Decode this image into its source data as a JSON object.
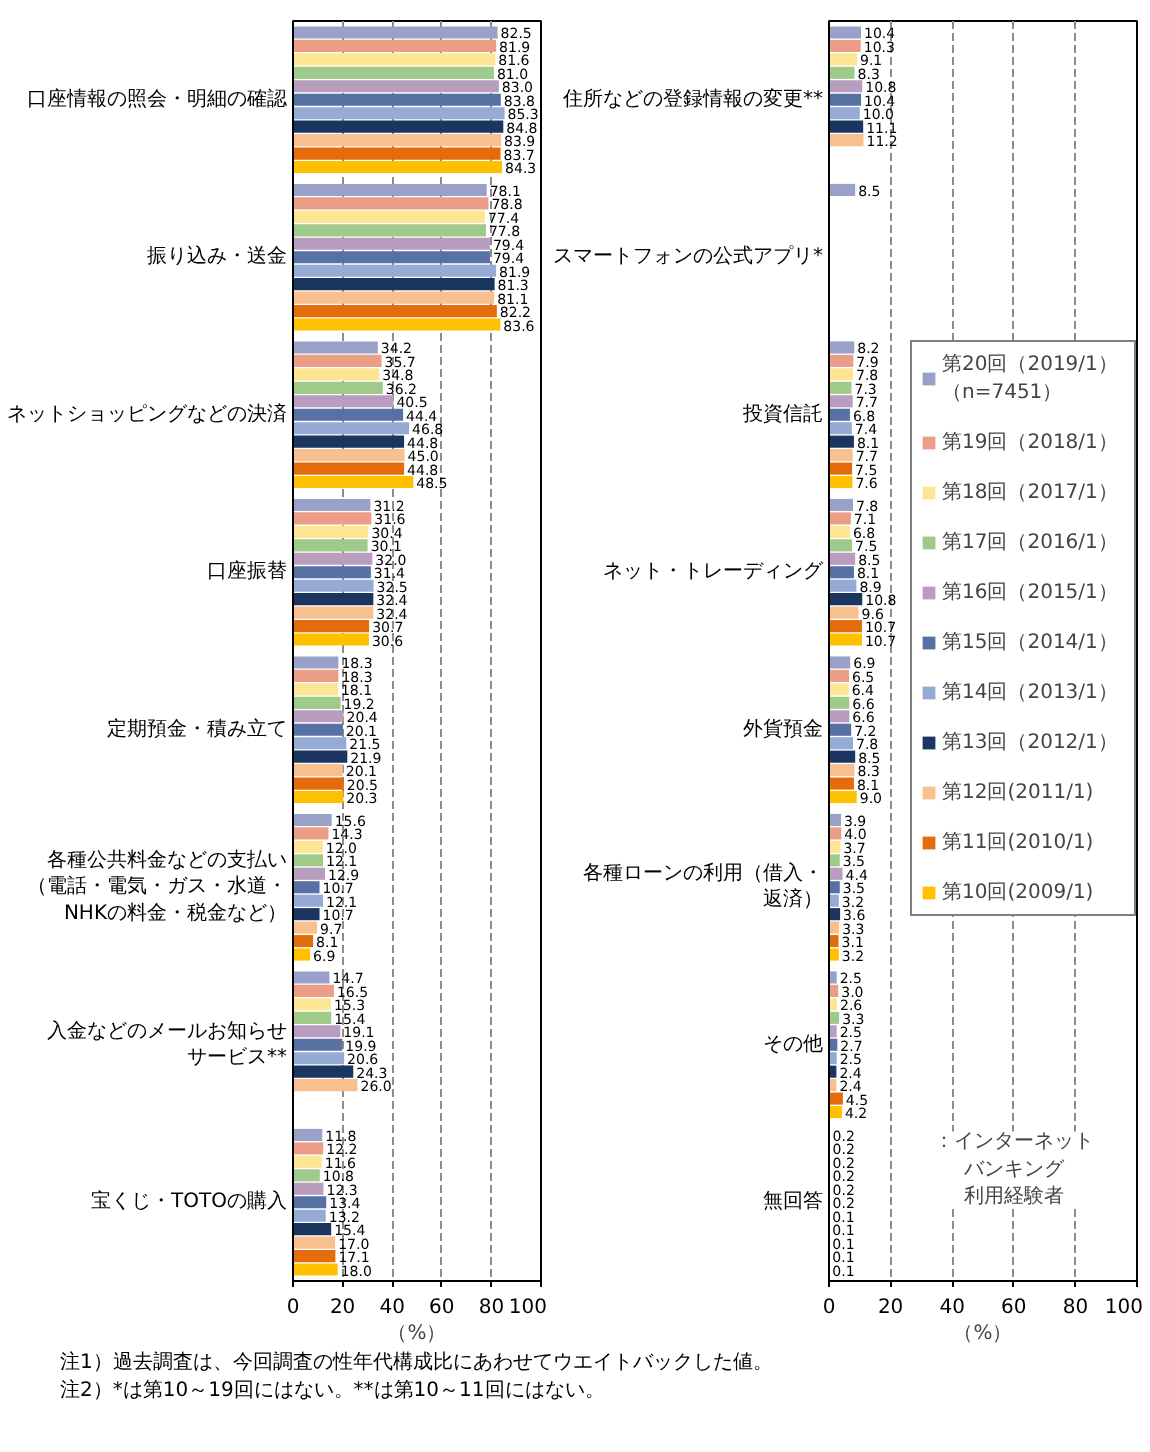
{
  "chart_data": [
    {
      "type": "bar",
      "orientation": "horizontal",
      "categories": [
        "口座情報の照会・明細の確認",
        "振り込み・送金",
        "ネットショッピングなどの決済",
        "口座振替",
        "定期預金・積み立て",
        "各種公共料金などの支払い（電話・電気・ガス・水道・NHKの料金・税金など）",
        "入金などのメールお知らせサービス**",
        "宝くじ・TOTOの購入"
      ],
      "series": [
        {
          "color": "#9aa1c9",
          "values": [
            82.5,
            78.1,
            34.2,
            31.2,
            18.3,
            15.6,
            14.7,
            11.8
          ],
          "value_labels": [
            "82.5",
            "78.1",
            "34.2",
            "31.2",
            "18.3",
            "15.6",
            "14.7",
            "11.8"
          ]
        },
        {
          "color": "#eb9d88",
          "values": [
            81.9,
            78.8,
            35.7,
            31.6,
            18.3,
            14.3,
            16.5,
            12.2
          ],
          "value_labels": [
            "81.9",
            "78.8",
            "35.7",
            "31.6",
            "18.3",
            "14.3",
            "16.5",
            "12.2"
          ]
        },
        {
          "color": "#fde693",
          "values": [
            81.6,
            77.4,
            34.8,
            30.4,
            18.1,
            12.0,
            15.3,
            11.6
          ],
          "value_labels": [
            "81.6",
            "77.4",
            "34.8",
            "30.4",
            "18.1",
            "12.0",
            "15.3",
            "11.6"
          ]
        },
        {
          "color": "#9fca89",
          "values": [
            81.0,
            77.8,
            36.2,
            30.1,
            19.2,
            12.1,
            15.4,
            10.8
          ],
          "value_labels": [
            "81.0",
            "77.8",
            "36.2",
            "30.1",
            "19.2",
            "12.1",
            "15.4",
            "10.8"
          ]
        },
        {
          "color": "#b89dbf",
          "values": [
            83.0,
            79.4,
            40.5,
            32.0,
            20.4,
            12.9,
            19.1,
            12.3
          ],
          "value_labels": [
            "83.0",
            "79.4",
            "40.5",
            "32.0",
            "20.4",
            "12.9",
            "19.1",
            "12.3"
          ]
        },
        {
          "color": "#5871a4",
          "values": [
            83.8,
            79.4,
            44.4,
            31.4,
            20.1,
            10.7,
            19.9,
            13.4
          ],
          "value_labels": [
            "83.8",
            "79.4",
            "44.4",
            "31.4",
            "20.1",
            "10.7",
            "19.9",
            "13.4"
          ]
        },
        {
          "color": "#95abd6",
          "values": [
            85.3,
            81.9,
            46.8,
            32.5,
            21.5,
            12.1,
            20.6,
            13.2
          ],
          "value_labels": [
            "85.3",
            "81.9",
            "46.8",
            "32.5",
            "21.5",
            "12.1",
            "20.6",
            "13.2"
          ]
        },
        {
          "color": "#1a3660",
          "values": [
            84.8,
            81.3,
            44.8,
            32.4,
            21.9,
            10.7,
            24.3,
            15.4
          ],
          "value_labels": [
            "84.8",
            "81.3",
            "44.8",
            "32.4",
            "21.9",
            "10.7",
            "24.3",
            "15.4"
          ]
        },
        {
          "color": "#f9c08f",
          "values": [
            83.9,
            81.1,
            45.0,
            32.4,
            20.1,
            9.7,
            26.0,
            17.0
          ],
          "value_labels": [
            "83.9",
            "81.1",
            "45.0",
            "32.4",
            "20.1",
            "9.7",
            "26.0",
            "17.0"
          ]
        },
        {
          "color": "#e46c0a",
          "values": [
            83.7,
            82.2,
            44.8,
            30.7,
            20.5,
            8.1,
            null,
            17.1
          ],
          "value_labels": [
            "83.7",
            "82.2",
            "44.8",
            "30.7",
            "20.5",
            "8.1",
            null,
            "17.1"
          ]
        },
        {
          "color": "#ffc000",
          "values": [
            84.3,
            83.6,
            48.5,
            30.6,
            20.3,
            6.9,
            null,
            18.0
          ],
          "value_labels": [
            "84.3",
            "83.6",
            "48.5",
            "30.6",
            "20.3",
            "6.9",
            null,
            "18.0"
          ]
        }
      ],
      "xlim": [
        0,
        100
      ],
      "xticks": [
        0,
        20,
        40,
        60,
        80,
        100
      ],
      "xlabel": "（%）",
      "grid": "x",
      "annotations": [
        "注1）過去調査は、今回調査の性年代構成比にあわせてウエイトバックした値。",
        "注2）*は第10～19回にはない。**は第10～11回にはない。"
      ]
    },
    {
      "type": "bar",
      "orientation": "horizontal",
      "categories": [
        "住所などの登録情報の変更**",
        "スマートフォンの公式アプリ*",
        "投資信託",
        "ネット・トレーディング",
        "外貨預金",
        "各種ローンの利用（借入・返済）",
        "その他",
        "無回答"
      ],
      "series": [
        {
          "name": "第20回（2019/1）（n=7451）",
          "color": "#9aa1c9",
          "values": [
            10.4,
            8.5,
            8.2,
            7.8,
            6.9,
            3.9,
            2.5,
            0.2
          ],
          "value_labels": [
            "10.4",
            "8.5",
            "8.2",
            "7.8",
            "6.9",
            "3.9",
            "2.5",
            "0.2"
          ]
        },
        {
          "name": "第19回（2018/1）",
          "color": "#eb9d88",
          "values": [
            10.3,
            null,
            7.9,
            7.1,
            6.5,
            4.0,
            3.0,
            0.2
          ],
          "value_labels": [
            "10.3",
            null,
            "7.9",
            "7.1",
            "6.5",
            "4.0",
            "3.0",
            "0.2"
          ]
        },
        {
          "name": "第18回（2017/1）",
          "color": "#fde693",
          "values": [
            9.1,
            null,
            7.8,
            6.8,
            6.4,
            3.7,
            2.6,
            0.2
          ],
          "value_labels": [
            "9.1",
            null,
            "7.8",
            "6.8",
            "6.4",
            "3.7",
            "2.6",
            "0.2"
          ]
        },
        {
          "name": "第17回（2016/1）",
          "color": "#9fca89",
          "values": [
            8.3,
            null,
            7.3,
            7.5,
            6.6,
            3.5,
            3.3,
            0.2
          ],
          "value_labels": [
            "8.3",
            null,
            "7.3",
            "7.5",
            "6.6",
            "3.5",
            "3.3",
            "0.2"
          ]
        },
        {
          "name": "第16回（2015/1）",
          "color": "#b89dbf",
          "values": [
            10.8,
            null,
            7.7,
            8.5,
            6.6,
            4.4,
            2.5,
            0.2
          ],
          "value_labels": [
            "10.8",
            null,
            "7.7",
            "8.5",
            "6.6",
            "4.4",
            "2.5",
            "0.2"
          ]
        },
        {
          "name": "第15回（2014/1）",
          "color": "#5871a4",
          "values": [
            10.4,
            null,
            6.8,
            8.1,
            7.2,
            3.5,
            2.7,
            0.2
          ],
          "value_labels": [
            "10.4",
            null,
            "6.8",
            "8.1",
            "7.2",
            "3.5",
            "2.7",
            "0.2"
          ]
        },
        {
          "name": "第14回（2013/1）",
          "color": "#95abd6",
          "values": [
            10.0,
            null,
            7.4,
            8.9,
            7.8,
            3.2,
            2.5,
            0.1
          ],
          "value_labels": [
            "10.0",
            null,
            "7.4",
            "8.9",
            "7.8",
            "3.2",
            "2.5",
            "0.1"
          ]
        },
        {
          "name": "第13回（2012/1）",
          "color": "#1a3660",
          "values": [
            11.1,
            null,
            8.1,
            10.8,
            8.5,
            3.6,
            2.4,
            0.1
          ],
          "value_labels": [
            "11.1",
            null,
            "8.1",
            "10.8",
            "8.5",
            "3.6",
            "2.4",
            "0.1"
          ]
        },
        {
          "name": "第12回(2011/1)",
          "color": "#f9c08f",
          "values": [
            11.2,
            null,
            7.7,
            9.6,
            8.3,
            3.3,
            2.4,
            0.1
          ],
          "value_labels": [
            "11.2",
            null,
            "7.7",
            "9.6",
            "8.3",
            "3.3",
            "2.4",
            "0.1"
          ]
        },
        {
          "name": "第11回(2010/1)",
          "color": "#e46c0a",
          "values": [
            null,
            null,
            7.5,
            10.7,
            8.1,
            3.1,
            4.5,
            0.1
          ],
          "value_labels": [
            null,
            null,
            "7.5",
            "10.7",
            "8.1",
            "3.1",
            "4.5",
            "0.1"
          ]
        },
        {
          "name": "第10回(2009/1)",
          "color": "#ffc000",
          "values": [
            null,
            null,
            7.6,
            10.7,
            9.0,
            3.2,
            4.2,
            0.1
          ],
          "value_labels": [
            null,
            null,
            "7.6",
            "10.7",
            "9.0",
            "3.2",
            "4.2",
            "0.1"
          ]
        }
      ],
      "xlim": [
        0,
        100
      ],
      "xticks": [
        0,
        20,
        40,
        60,
        80,
        100
      ],
      "xlabel": "（%）",
      "grid": "x",
      "legend": "right",
      "annotations": [
        "：インターネットバンキング利用経験者"
      ]
    }
  ]
}
